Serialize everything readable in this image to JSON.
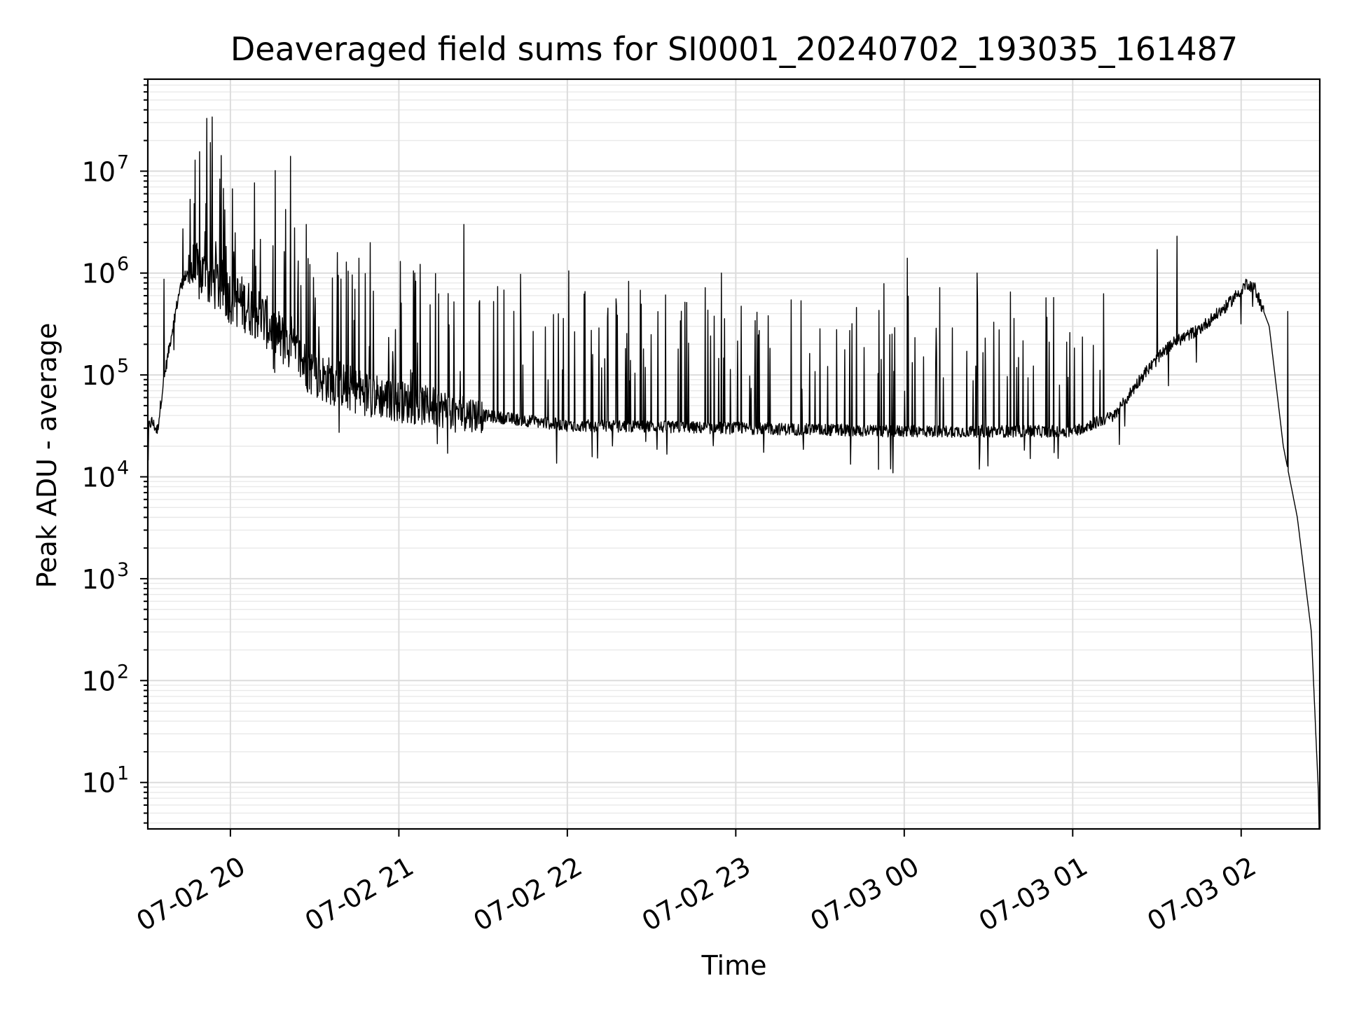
{
  "chart_data": {
    "type": "line",
    "title": "Deaveraged field sums for SI0001_20240702_193035_161487",
    "xlabel": "Time",
    "ylabel": "Peak ADU - average",
    "yscale": "log",
    "grid": "on (major and minor)",
    "legend": "none",
    "line_color": "#000000",
    "xlim": [
      "2024-07-02 19:30:35",
      "2024-07-03 02:28:00"
    ],
    "ylim": [
      3.5,
      80000000
    ],
    "x_ticks": [
      {
        "t": "2024-07-02 20:00",
        "label": "07-02 20"
      },
      {
        "t": "2024-07-02 21:00",
        "label": "07-02 21"
      },
      {
        "t": "2024-07-02 22:00",
        "label": "07-02 22"
      },
      {
        "t": "2024-07-02 23:00",
        "label": "07-02 23"
      },
      {
        "t": "2024-07-03 00:00",
        "label": "07-03 00"
      },
      {
        "t": "2024-07-03 01:00",
        "label": "07-03 01"
      },
      {
        "t": "2024-07-03 02:00",
        "label": "07-03 02"
      }
    ],
    "y_ticks": [
      {
        "value": 10,
        "base": "10",
        "exp": "1"
      },
      {
        "value": 100,
        "base": "10",
        "exp": "2"
      },
      {
        "value": 1000,
        "base": "10",
        "exp": "3"
      },
      {
        "value": 10000,
        "base": "10",
        "exp": "4"
      },
      {
        "value": 100000,
        "base": "10",
        "exp": "5"
      },
      {
        "value": 1000000,
        "base": "10",
        "exp": "6"
      },
      {
        "value": 10000000,
        "base": "10",
        "exp": "7"
      }
    ],
    "series": [
      {
        "baseline": [
          [
            "2024-07-02 19:30:35",
            30000
          ],
          [
            "2024-07-02 19:32:00",
            35000
          ],
          [
            "2024-07-02 19:34:00",
            28000
          ],
          [
            "2024-07-02 19:36:00",
            80000
          ],
          [
            "2024-07-02 19:39:00",
            250000
          ],
          [
            "2024-07-02 19:42:00",
            700000
          ],
          [
            "2024-07-02 19:45:00",
            1100000
          ],
          [
            "2024-07-02 19:50:00",
            950000
          ],
          [
            "2024-07-02 19:55:00",
            800000
          ],
          [
            "2024-07-02 20:00:00",
            600000
          ],
          [
            "2024-07-02 20:10:00",
            400000
          ],
          [
            "2024-07-02 20:20:00",
            200000
          ],
          [
            "2024-07-02 20:30:00",
            100000
          ],
          [
            "2024-07-02 20:45:00",
            70000
          ],
          [
            "2024-07-02 21:00:00",
            55000
          ],
          [
            "2024-07-02 21:30:00",
            40000
          ],
          [
            "2024-07-02 22:00:00",
            32000
          ],
          [
            "2024-07-02 23:00:00",
            30000
          ],
          [
            "2024-07-03 00:00:00",
            28000
          ],
          [
            "2024-07-03 01:00:00",
            28000
          ],
          [
            "2024-07-03 01:15:00",
            40000
          ],
          [
            "2024-07-03 01:25:00",
            100000
          ],
          [
            "2024-07-03 01:35:00",
            200000
          ],
          [
            "2024-07-03 01:45:00",
            280000
          ],
          [
            "2024-07-03 01:55:00",
            480000
          ],
          [
            "2024-07-03 02:02:00",
            800000
          ],
          [
            "2024-07-03 02:05:00",
            700000
          ],
          [
            "2024-07-03 02:10:00",
            300000
          ],
          [
            "2024-07-03 02:15:00",
            20000
          ],
          [
            "2024-07-03 02:20:00",
            4000
          ],
          [
            "2024-07-03 02:25:00",
            300
          ],
          [
            "2024-07-03 02:27:30",
            8
          ]
        ],
        "spikes": [
          [
            "2024-07-02 19:51:30",
            33000000
          ],
          [
            "2024-07-02 19:53:30",
            34000000
          ],
          [
            "2024-07-02 20:21:30",
            14000000
          ],
          [
            "2024-07-02 20:27:00",
            3000000
          ],
          [
            "2024-07-02 21:23:00",
            3000000
          ],
          [
            "2024-07-02 22:00:30",
            1050000
          ],
          [
            "2024-07-02 22:55:00",
            1000000
          ],
          [
            "2024-07-03 00:01:00",
            1400000
          ],
          [
            "2024-07-03 00:26:00",
            1000000
          ],
          [
            "2024-07-03 01:30:00",
            1700000
          ],
          [
            "2024-07-03 01:37:00",
            2300000
          ],
          [
            "2024-07-03 02:16:30",
            420000
          ]
        ]
      }
    ]
  }
}
